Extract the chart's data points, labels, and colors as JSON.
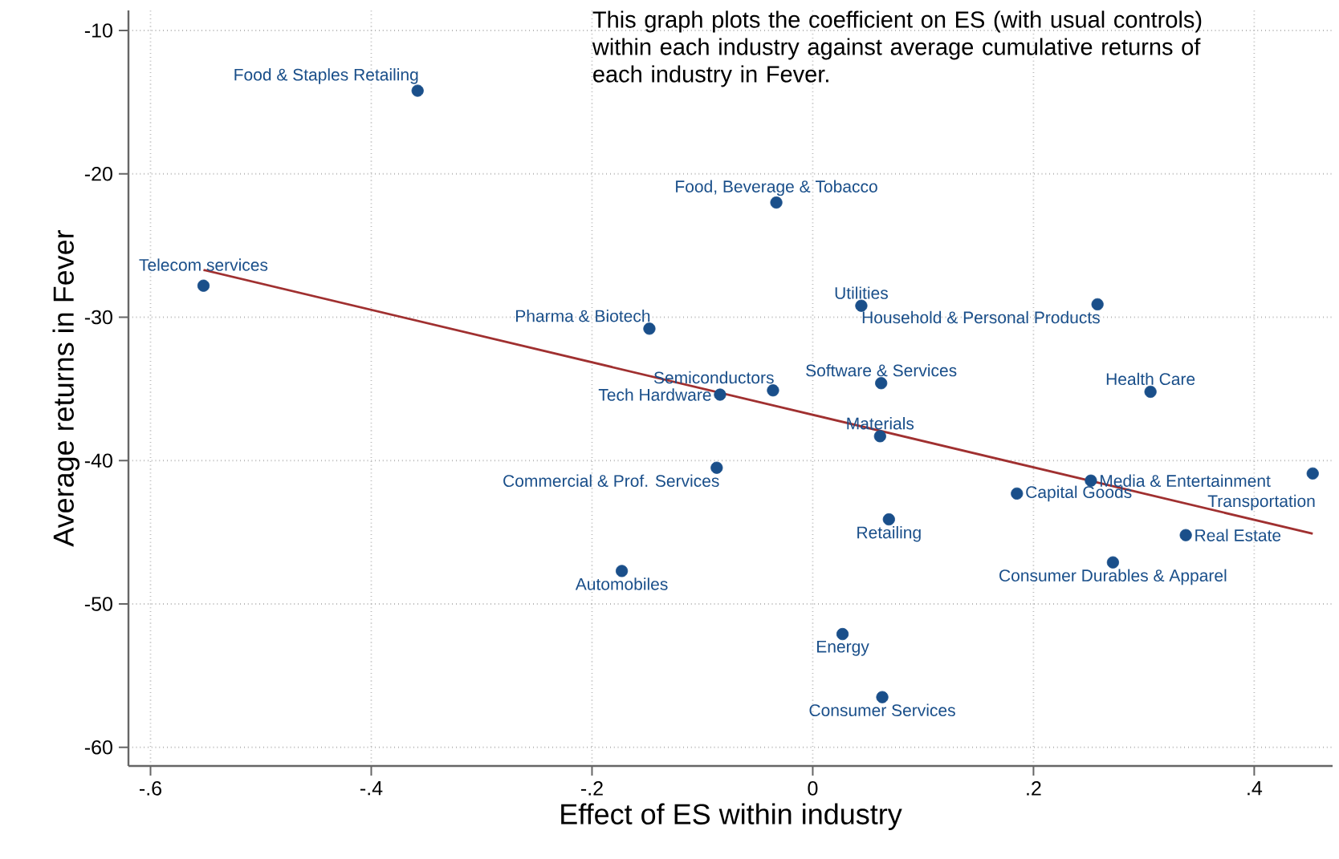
{
  "chart_data": {
    "type": "scatter",
    "xlabel": "Effect of ES within industry",
    "ylabel": "Average returns in Fever",
    "xlim": [
      -0.62,
      0.471
    ],
    "ylim": [
      -61.3,
      -8.6
    ],
    "xticks": [
      {
        "value": -0.6,
        "label": "-.6"
      },
      {
        "value": -0.4,
        "label": "-.4"
      },
      {
        "value": -0.2,
        "label": "-.2"
      },
      0,
      {
        "value": 0.2,
        "label": ".2"
      },
      {
        "value": 0.4,
        "label": ".4"
      }
    ],
    "yticks": [
      -10,
      -20,
      -30,
      -40,
      -50,
      -60
    ],
    "grid": true,
    "series": [
      {
        "marker": "circle",
        "color": "#1a4f8a",
        "x": [
          -0.358,
          -0.033,
          -0.552,
          -0.148,
          0.044,
          0.258,
          0.062,
          -0.036,
          -0.084,
          0.306,
          0.061,
          -0.087,
          0.453,
          0.252,
          0.185,
          0.069,
          0.338,
          0.272,
          -0.173,
          0.027,
          0.063
        ],
        "values": [
          -14.2,
          -22.0,
          -27.8,
          -30.8,
          -29.2,
          -29.1,
          -34.6,
          -35.1,
          -35.4,
          -35.2,
          -38.3,
          -40.5,
          -40.9,
          -41.4,
          -42.3,
          -44.1,
          -45.2,
          -47.1,
          -47.7,
          -52.1,
          -56.5
        ]
      },
      {
        "type": "line",
        "color": "#a03030",
        "x": [
          -0.552,
          0.453
        ],
        "values": [
          -26.7,
          -45.1
        ]
      }
    ],
    "annotations": [
      "This graph plots the coefficient on ES (with usual controls) within each industry against average cumulative returns of each industry in Fever.",
      {
        "text": "Food & Staples Retailing",
        "x": -0.358,
        "y": -14.2
      },
      {
        "text": "Food, Beverage & Tobacco",
        "x": -0.033,
        "y": -22.0
      },
      {
        "text": "Telecom services",
        "x": -0.552,
        "y": -27.8
      },
      {
        "text": "Pharma & Biotech",
        "x": -0.148,
        "y": -30.8
      },
      {
        "text": "Utilities",
        "x": 0.044,
        "y": -29.2
      },
      {
        "text": "Household & Personal Products",
        "x": 0.258,
        "y": -29.1
      },
      {
        "text": "Software & Services",
        "x": 0.062,
        "y": -34.6
      },
      {
        "text": "Semiconductors",
        "x": -0.036,
        "y": -35.1
      },
      {
        "text": "Tech Hardware",
        "x": -0.084,
        "y": -35.4
      },
      {
        "text": "Health Care",
        "x": 0.306,
        "y": -35.2
      },
      {
        "text": "Materials",
        "x": 0.061,
        "y": -38.3
      },
      {
        "text": "Commercial & Prof. Services",
        "x": -0.087,
        "y": -40.5
      },
      {
        "text": "Transportation",
        "x": 0.453,
        "y": -40.9
      },
      {
        "text": "Media & Entertainment",
        "x": 0.252,
        "y": -41.4
      },
      {
        "text": "Capital Goods",
        "x": 0.185,
        "y": -42.3
      },
      {
        "text": "Retailing",
        "x": 0.069,
        "y": -44.1
      },
      {
        "text": "Real Estate",
        "x": 0.338,
        "y": -45.2
      },
      {
        "text": "Consumer Durables & Apparel",
        "x": 0.272,
        "y": -47.1
      },
      {
        "text": "Automobiles",
        "x": -0.173,
        "y": -47.7
      },
      {
        "text": "Energy",
        "x": 0.027,
        "y": -52.1
      },
      {
        "text": "Consumer Services",
        "x": 0.063,
        "y": -56.5
      }
    ]
  }
}
